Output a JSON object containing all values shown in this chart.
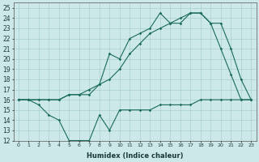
{
  "xlabel": "Humidex (Indice chaleur)",
  "ylabel": "",
  "bg_color": "#cce8e8",
  "line_color": "#1a6b5a",
  "xlim": [
    -0.5,
    23.5
  ],
  "ylim": [
    12,
    25.5
  ],
  "yticks": [
    12,
    13,
    14,
    15,
    16,
    17,
    18,
    19,
    20,
    21,
    22,
    23,
    24,
    25
  ],
  "xticks": [
    0,
    1,
    2,
    3,
    4,
    5,
    6,
    7,
    8,
    9,
    10,
    11,
    12,
    13,
    14,
    15,
    16,
    17,
    18,
    19,
    20,
    21,
    22,
    23
  ],
  "line1_x": [
    0,
    1,
    2,
    3,
    4,
    5,
    6,
    7,
    8,
    9,
    10,
    11,
    12,
    13,
    14,
    15,
    16,
    17,
    18,
    19,
    20,
    21,
    22,
    23
  ],
  "line1_y": [
    16,
    16,
    16,
    16,
    16,
    16.5,
    16.5,
    16.5,
    17.5,
    20.5,
    20,
    22,
    22.5,
    23,
    24.5,
    23.5,
    23.5,
    24.5,
    24.5,
    23.5,
    21,
    18.5,
    16,
    16
  ],
  "line2_x": [
    0,
    1,
    2,
    3,
    4,
    5,
    6,
    7,
    8,
    9,
    10,
    11,
    12,
    13,
    14,
    15,
    16,
    17,
    18,
    19,
    20,
    21,
    22,
    23
  ],
  "line2_y": [
    16,
    16,
    15.5,
    14.5,
    14,
    12,
    12,
    12,
    14.5,
    13,
    15,
    15,
    15,
    15,
    15.5,
    15.5,
    15.5,
    15.5,
    16,
    16,
    16,
    16,
    16,
    16
  ],
  "line3_x": [
    0,
    1,
    2,
    3,
    4,
    5,
    6,
    7,
    8,
    9,
    10,
    11,
    12,
    13,
    14,
    15,
    16,
    17,
    18,
    19,
    20,
    21,
    22,
    23
  ],
  "line3_y": [
    16,
    16,
    16,
    16,
    16,
    16.5,
    16.5,
    17,
    17.5,
    18,
    19,
    20.5,
    21.5,
    22.5,
    23,
    23.5,
    24,
    24.5,
    24.5,
    23.5,
    23.5,
    21,
    18,
    16
  ]
}
